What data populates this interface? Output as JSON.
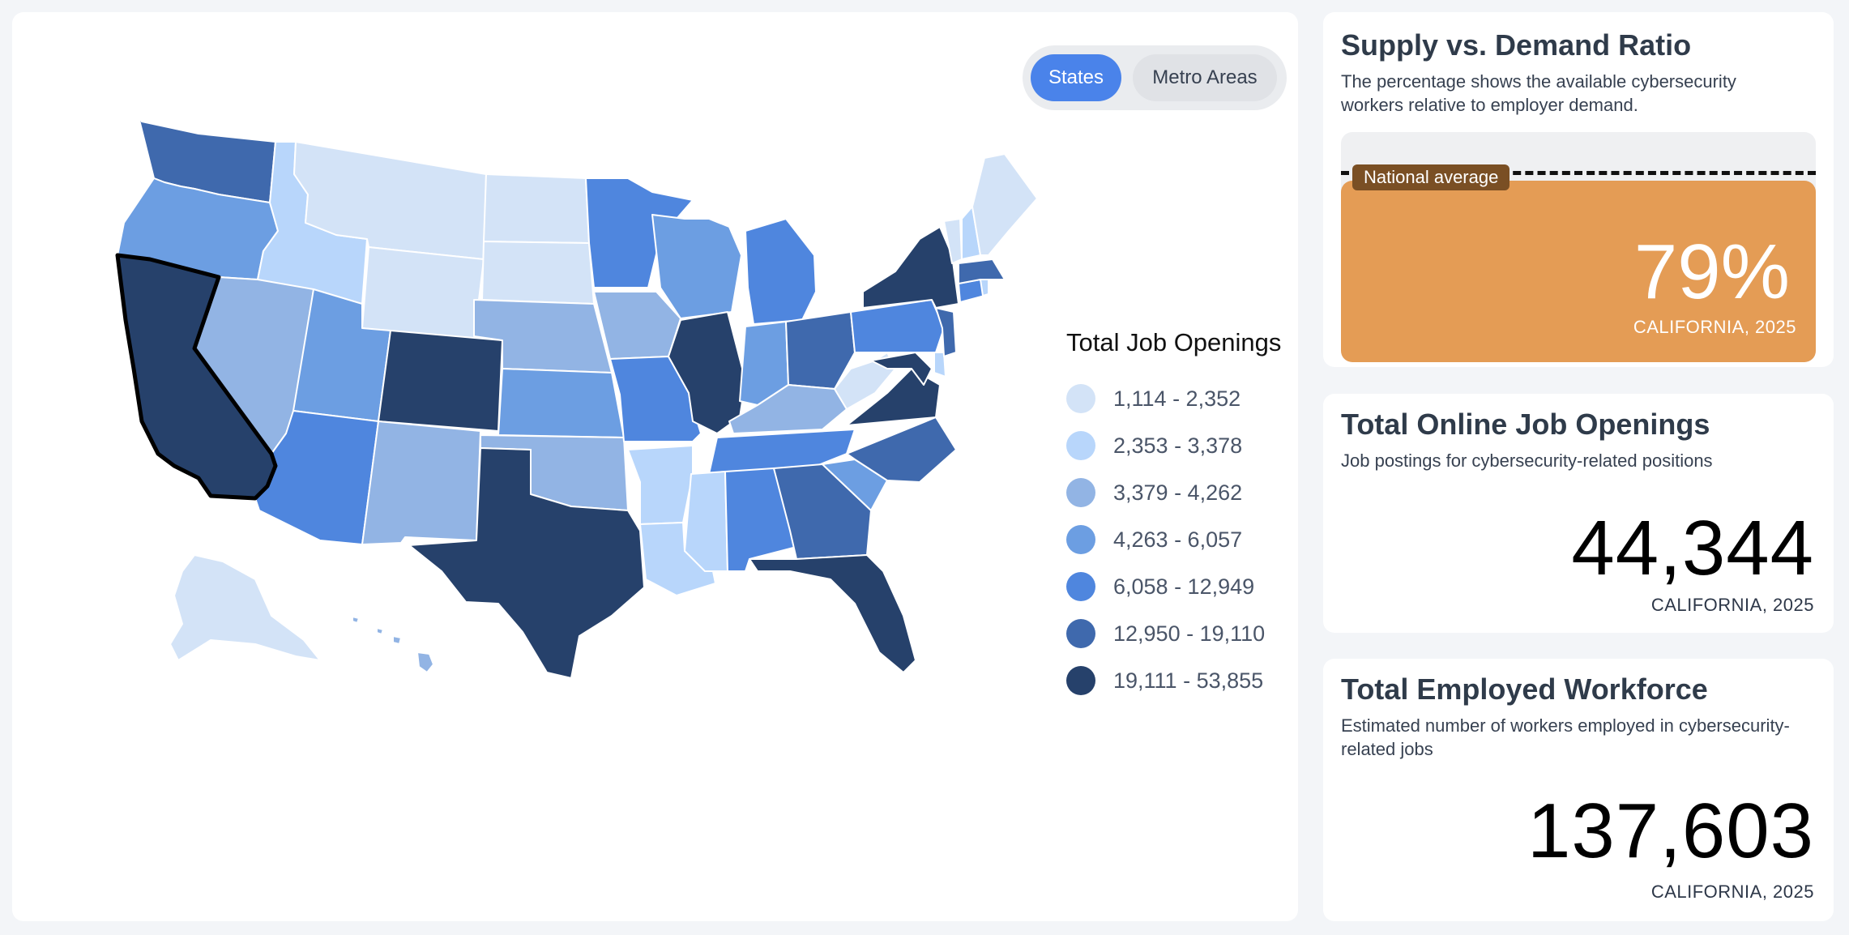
{
  "toggle": {
    "states_label": "States",
    "metro_label": "Metro Areas",
    "selected": "States"
  },
  "map": {
    "selected_state": "California",
    "states": [
      {
        "id": "WA",
        "bin": 5
      },
      {
        "id": "OR",
        "bin": 3
      },
      {
        "id": "CA",
        "bin": 6
      },
      {
        "id": "ID",
        "bin": 1
      },
      {
        "id": "NV",
        "bin": 2
      },
      {
        "id": "MT",
        "bin": 0
      },
      {
        "id": "WY",
        "bin": 0
      },
      {
        "id": "UT",
        "bin": 3
      },
      {
        "id": "AZ",
        "bin": 4
      },
      {
        "id": "CO",
        "bin": 6
      },
      {
        "id": "NM",
        "bin": 2
      },
      {
        "id": "ND",
        "bin": 0
      },
      {
        "id": "SD",
        "bin": 0
      },
      {
        "id": "NE",
        "bin": 2
      },
      {
        "id": "KS",
        "bin": 3
      },
      {
        "id": "OK",
        "bin": 2
      },
      {
        "id": "TX",
        "bin": 6
      },
      {
        "id": "MN",
        "bin": 4
      },
      {
        "id": "IA",
        "bin": 2
      },
      {
        "id": "MO",
        "bin": 4
      },
      {
        "id": "AR",
        "bin": 1
      },
      {
        "id": "LA",
        "bin": 1
      },
      {
        "id": "WI",
        "bin": 3
      },
      {
        "id": "IL",
        "bin": 6
      },
      {
        "id": "MI",
        "bin": 4
      },
      {
        "id": "IN",
        "bin": 3
      },
      {
        "id": "OH",
        "bin": 5
      },
      {
        "id": "KY",
        "bin": 2
      },
      {
        "id": "TN",
        "bin": 4
      },
      {
        "id": "MS",
        "bin": 1
      },
      {
        "id": "AL",
        "bin": 4
      },
      {
        "id": "GA",
        "bin": 5
      },
      {
        "id": "FL",
        "bin": 6
      },
      {
        "id": "SC",
        "bin": 3
      },
      {
        "id": "NC",
        "bin": 5
      },
      {
        "id": "VA",
        "bin": 6
      },
      {
        "id": "WV",
        "bin": 0
      },
      {
        "id": "MD",
        "bin": 6
      },
      {
        "id": "DE",
        "bin": 1
      },
      {
        "id": "PA",
        "bin": 4
      },
      {
        "id": "NJ",
        "bin": 5
      },
      {
        "id": "NY",
        "bin": 6
      },
      {
        "id": "CT",
        "bin": 4
      },
      {
        "id": "RI",
        "bin": 1
      },
      {
        "id": "MA",
        "bin": 5
      },
      {
        "id": "VT",
        "bin": 0
      },
      {
        "id": "NH",
        "bin": 1
      },
      {
        "id": "ME",
        "bin": 0
      },
      {
        "id": "AK",
        "bin": 0
      },
      {
        "id": "HI",
        "bin": 2
      }
    ]
  },
  "legend": {
    "title": "Total Job Openings",
    "bins": [
      {
        "label": "1,114 - 2,352",
        "color": "#d3e3f7"
      },
      {
        "label": "2,353 - 3,378",
        "color": "#b8d6fb"
      },
      {
        "label": "3,379 - 4,262",
        "color": "#92b4e4"
      },
      {
        "label": "4,263 - 6,057",
        "color": "#6c9ee2"
      },
      {
        "label": "6,058 - 12,949",
        "color": "#4f86de"
      },
      {
        "label": "12,950 - 19,110",
        "color": "#3f69ad"
      },
      {
        "label": "19,111 - 53,855",
        "color": "#26416b"
      }
    ]
  },
  "ratio_card": {
    "title": "Supply vs. Demand Ratio",
    "subtitle": "The percentage shows the available cybersecurity workers relative to employer demand.",
    "value": "79%",
    "ratio_fraction": 0.79,
    "national_average_fraction": 0.83,
    "national_average_label": "National average",
    "fill_color": "#e49c55",
    "caption": "CALIFORNIA, 2025"
  },
  "openings_card": {
    "title": "Total Online Job Openings",
    "subtitle": "Job postings for cybersecurity-related positions",
    "value": "44,344",
    "caption": "CALIFORNIA, 2025"
  },
  "workforce_card": {
    "title": "Total Employed Workforce",
    "subtitle": "Estimated number of workers employed in cybersecurity-related jobs",
    "value": "137,603",
    "caption": "CALIFORNIA, 2025"
  }
}
